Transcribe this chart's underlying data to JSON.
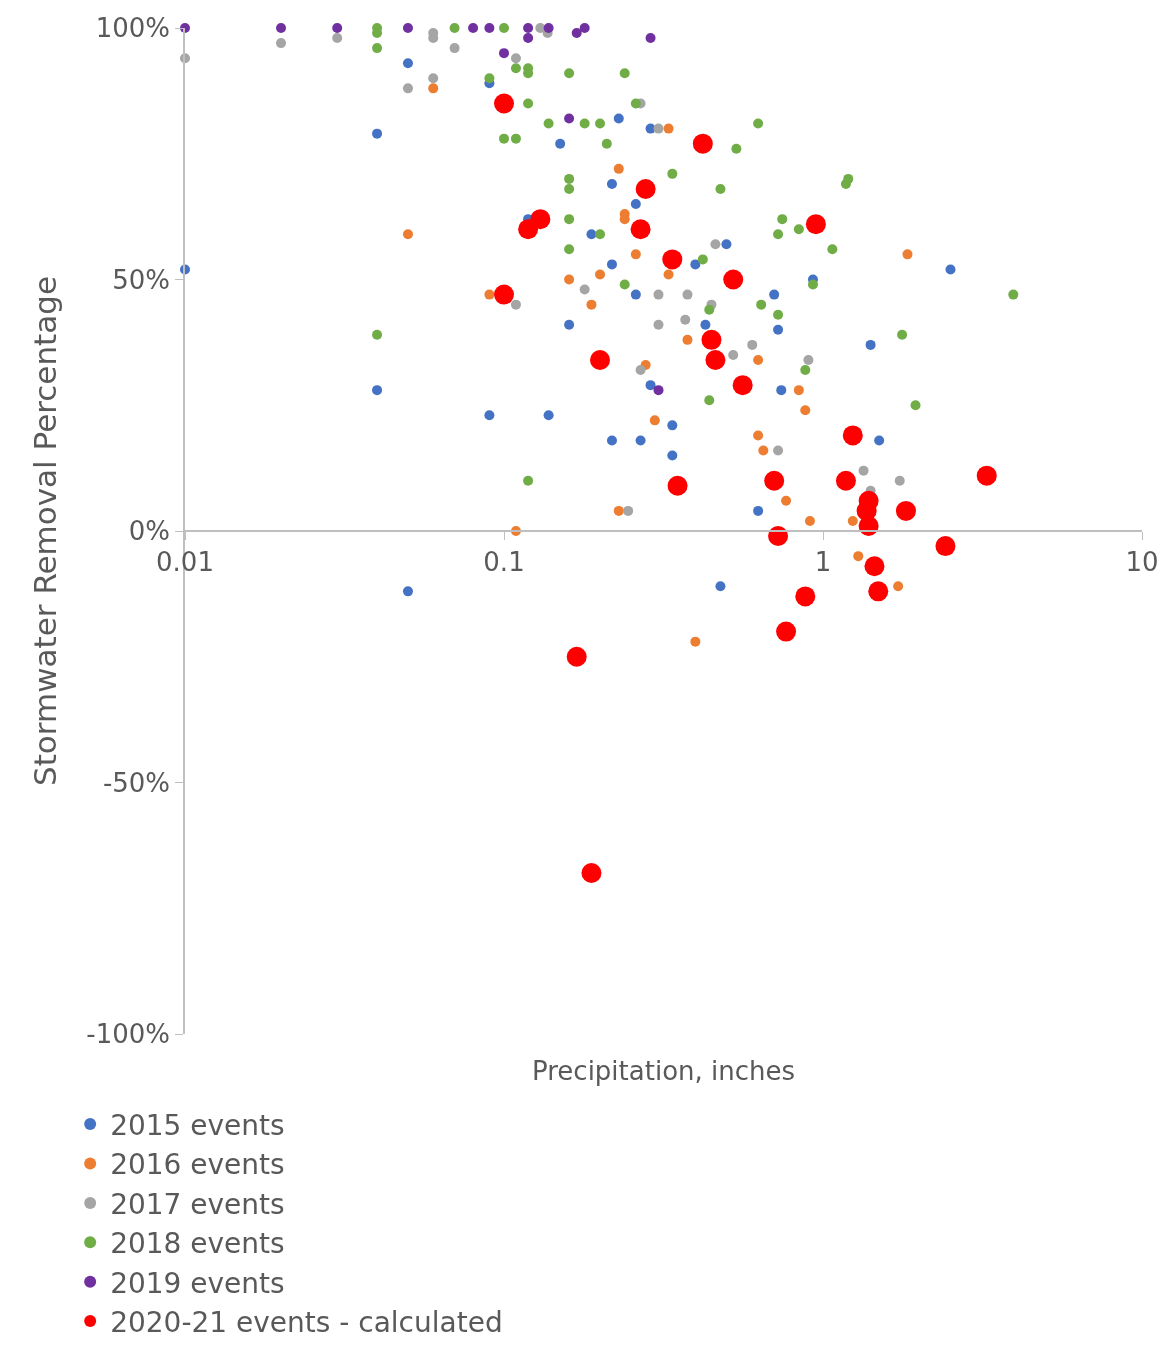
{
  "chart_data": {
    "type": "scatter",
    "xlabel": "Precipitation, inches",
    "ylabel": "Stormwater Removal Percentage",
    "log": "x",
    "xlim": [
      0.01,
      10
    ],
    "xticks": [
      0.01,
      0.1,
      1,
      10
    ],
    "ylim": [
      -100,
      100
    ],
    "yticks": [
      {
        "value": -100,
        "label": "-100%"
      },
      {
        "value": -50,
        "label": "-50%"
      },
      {
        "value": 0,
        "label": "0%"
      },
      {
        "value": 50,
        "label": "50%"
      },
      {
        "value": 100,
        "label": "100%"
      }
    ],
    "legend": "bottom",
    "marker": "circle",
    "series": [
      {
        "name": "2015 events",
        "color": "#4472c4",
        "x": [
          0.01,
          0.04,
          0.04,
          0.05,
          0.05,
          0.09,
          0.09,
          0.119,
          0.138,
          0.15,
          0.16,
          0.188,
          0.218,
          0.218,
          0.229,
          0.218,
          0.259,
          0.259,
          0.268,
          0.288,
          0.288,
          0.337,
          0.337,
          0.398,
          0.428,
          0.477,
          0.498,
          0.626,
          0.703,
          0.723,
          0.74,
          0.93,
          1.41,
          1.5,
          2.51
        ],
        "values": [
          52,
          79,
          28,
          93,
          -12,
          23,
          89,
          62,
          23,
          77,
          41,
          59,
          53,
          18,
          82,
          69,
          47,
          65,
          18,
          29,
          80,
          21,
          15,
          53,
          41,
          -11,
          57,
          4,
          47,
          40,
          28,
          50,
          37,
          18,
          52
        ]
      },
      {
        "name": "2016 events",
        "color": "#ed7d31",
        "x": [
          0.05,
          0.06,
          0.09,
          0.109,
          0.16,
          0.188,
          0.2,
          0.229,
          0.239,
          0.239,
          0.259,
          0.229,
          0.278,
          0.297,
          0.328,
          0.328,
          0.376,
          0.398,
          0.626,
          0.626,
          0.65,
          0.766,
          0.84,
          0.88,
          0.91,
          1.24,
          1.29,
          1.72,
          1.84
        ],
        "values": [
          59,
          88,
          47,
          0,
          50,
          45,
          51,
          72,
          63,
          62,
          55,
          4,
          33,
          22,
          80,
          51,
          38,
          -22,
          34,
          19,
          16,
          6,
          28,
          24,
          2,
          2,
          -5,
          -11,
          55
        ]
      },
      {
        "name": "2017 events",
        "color": "#a5a5a5",
        "x": [
          0.01,
          0.02,
          0.03,
          0.05,
          0.06,
          0.06,
          0.06,
          0.07,
          0.109,
          0.109,
          0.13,
          0.137,
          0.179,
          0.268,
          0.268,
          0.245,
          0.305,
          0.305,
          0.305,
          0.37,
          0.376,
          0.447,
          0.46,
          0.523,
          0.6,
          0.723,
          0.9,
          1.34,
          1.41,
          1.74
        ],
        "values": [
          94,
          97,
          98,
          88,
          90,
          99,
          98,
          96,
          94,
          45,
          100,
          99,
          48,
          32,
          85,
          4,
          80,
          47,
          41,
          42,
          47,
          45,
          57,
          35,
          37,
          16,
          34,
          12,
          8,
          10
        ]
      },
      {
        "name": "2018 events",
        "color": "#70ad47",
        "x": [
          0.04,
          0.04,
          0.04,
          0.04,
          0.07,
          0.09,
          0.1,
          0.1,
          0.109,
          0.109,
          0.119,
          0.119,
          0.119,
          0.119,
          0.138,
          0.16,
          0.16,
          0.16,
          0.16,
          0.16,
          0.179,
          0.2,
          0.2,
          0.21,
          0.239,
          0.239,
          0.259,
          0.337,
          0.42,
          0.44,
          0.44,
          0.477,
          0.535,
          0.626,
          0.64,
          0.723,
          0.745,
          0.723,
          0.84,
          0.88,
          0.93,
          1.07,
          1.18,
          1.2,
          1.77,
          1.95,
          3.95
        ],
        "values": [
          100,
          99,
          96,
          39,
          100,
          90,
          100,
          78,
          78,
          92,
          92,
          91,
          85,
          10,
          81,
          91,
          70,
          68,
          62,
          56,
          81,
          81,
          59,
          77,
          91,
          49,
          85,
          71,
          54,
          44,
          26,
          68,
          76,
          81,
          45,
          59,
          62,
          43,
          60,
          32,
          49,
          56,
          69,
          70,
          39,
          25,
          47
        ]
      },
      {
        "name": "2019 events",
        "color": "#7030a0",
        "x": [
          0.01,
          0.02,
          0.03,
          0.05,
          0.08,
          0.09,
          0.1,
          0.119,
          0.119,
          0.138,
          0.16,
          0.169,
          0.179,
          0.288,
          0.305
        ],
        "values": [
          100,
          100,
          100,
          100,
          100,
          100,
          95,
          100,
          98,
          100,
          82,
          99,
          100,
          98,
          28
        ]
      },
      {
        "name": "2020-21 events - calculated",
        "color": "#ff0000",
        "x": [
          0.1,
          0.1,
          0.119,
          0.13,
          0.169,
          0.188,
          0.2,
          0.268,
          0.278,
          0.337,
          0.35,
          0.42,
          0.447,
          0.46,
          0.523,
          0.56,
          0.703,
          0.723,
          0.766,
          0.88,
          0.95,
          1.18,
          1.24,
          1.37,
          1.39,
          1.39,
          1.45,
          1.49,
          1.82,
          2.42,
          3.26
        ],
        "values": [
          85,
          47,
          60,
          62,
          -25,
          -68,
          34,
          60,
          68,
          54,
          9,
          77,
          38,
          34,
          50,
          29,
          10,
          -1,
          -20,
          -13,
          61,
          10,
          19,
          4,
          6,
          1,
          -7,
          -12,
          4,
          -3,
          11
        ]
      }
    ]
  }
}
